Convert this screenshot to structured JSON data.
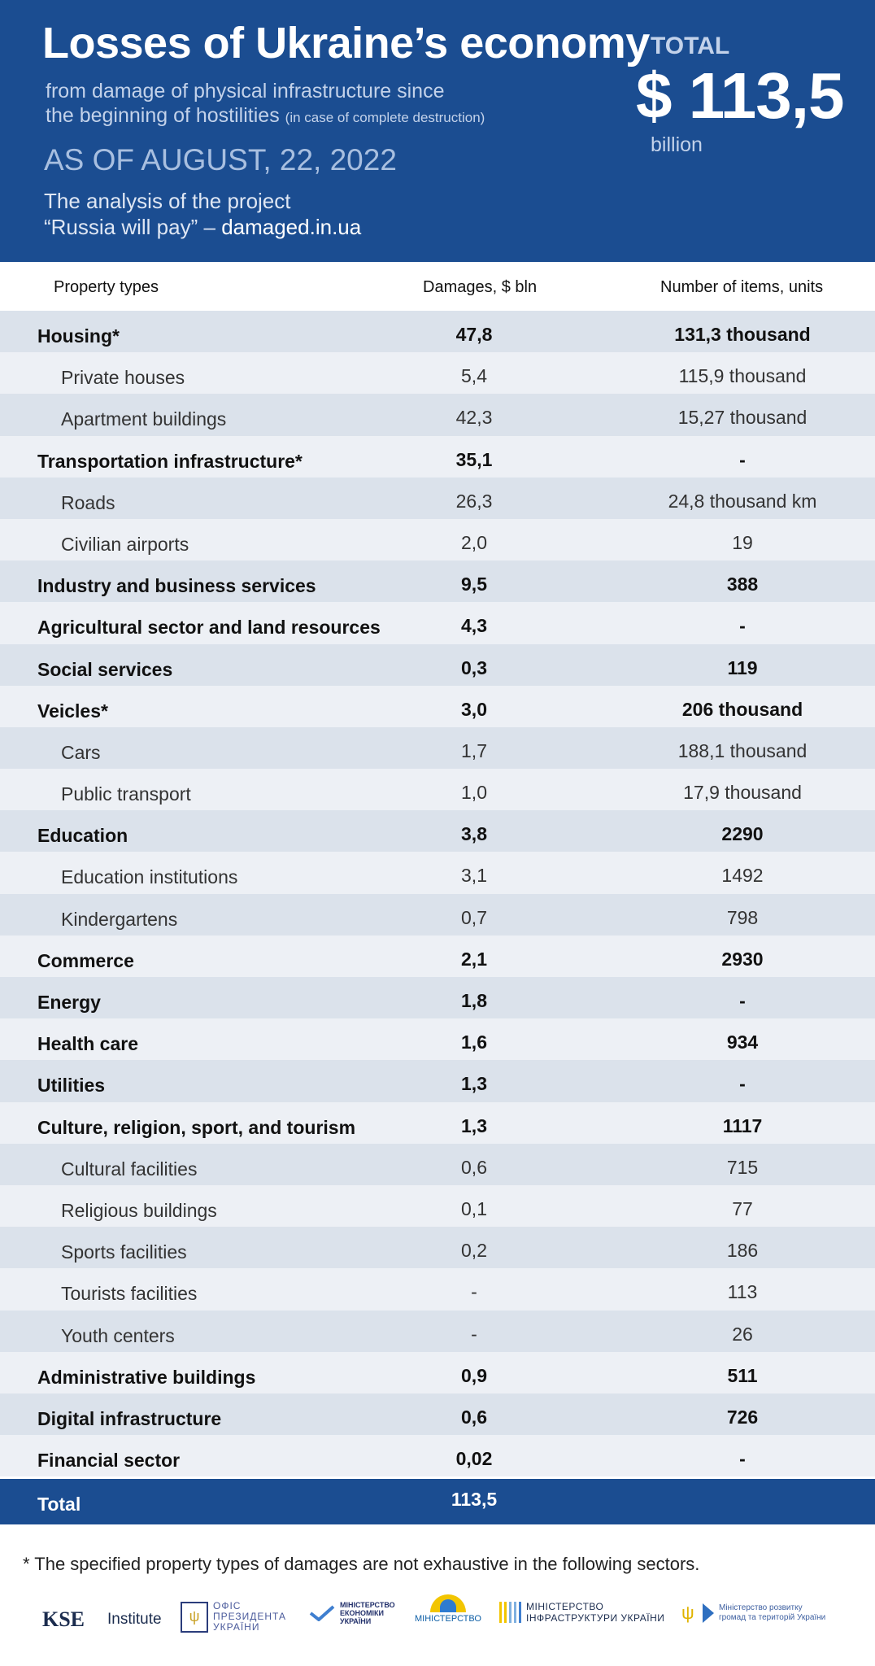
{
  "header": {
    "title": "Losses of Ukraine’s economy",
    "subtitle_line1": "from damage of physical infrastructure since",
    "subtitle_line2": "the beginning of hostilities",
    "subtitle_note": "(in case of complete destruction)",
    "date": "AS OF AUGUST, 22, 2022",
    "analysis_line1": "The analysis of the project",
    "analysis_line2": "“Russia will pay” –",
    "analysis_site": "damaged.in.ua",
    "total_label": "TOTAL",
    "total_value": "$ 113,5",
    "total_unit": "billion"
  },
  "columns": {
    "type": "Property types",
    "damages": "Damages, $ bln",
    "items": "Number of items, units"
  },
  "rows": [
    {
      "name": "Housing*",
      "damages": "47,8",
      "items": "131,3 thousand",
      "level": "main"
    },
    {
      "name": "Private houses",
      "damages": "5,4",
      "items": "115,9 thousand",
      "level": "sub"
    },
    {
      "name": "Apartment buildings",
      "damages": "42,3",
      "items": "15,27 thousand",
      "level": "sub"
    },
    {
      "name": "Transportation infrastructure*",
      "damages": "35,1",
      "items": "-",
      "level": "main"
    },
    {
      "name": "Roads",
      "damages": "26,3",
      "items": "24,8 thousand km",
      "level": "sub"
    },
    {
      "name": "Civilian airports",
      "damages": "2,0",
      "items": "19",
      "level": "sub"
    },
    {
      "name": "Industry and business services",
      "damages": "9,5",
      "items": "388",
      "level": "main"
    },
    {
      "name": "Agricultural sector and land resources",
      "damages": "4,3",
      "items": "-",
      "level": "main"
    },
    {
      "name": "Social services",
      "damages": "0,3",
      "items": "119",
      "level": "main"
    },
    {
      "name": "Veicles*",
      "damages": "3,0",
      "items": "206 thousand",
      "level": "main"
    },
    {
      "name": "Cars",
      "damages": "1,7",
      "items": "188,1  thousand",
      "level": "sub"
    },
    {
      "name": "Public transport",
      "damages": "1,0",
      "items": "17,9 thousand",
      "level": "sub"
    },
    {
      "name": "Education",
      "damages": "3,8",
      "items": "2290",
      "level": "main"
    },
    {
      "name": "Education institutions",
      "damages": "3,1",
      "items": "1492",
      "level": "sub"
    },
    {
      "name": "Kindergartens",
      "damages": "0,7",
      "items": "798",
      "level": "sub"
    },
    {
      "name": "Commerce",
      "damages": "2,1",
      "items": "2930",
      "level": "main"
    },
    {
      "name": "Energy",
      "damages": "1,8",
      "items": "-",
      "level": "main"
    },
    {
      "name": "Health care",
      "damages": "1,6",
      "items": "934",
      "level": "main"
    },
    {
      "name": "Utilities",
      "damages": "1,3",
      "items": "-",
      "level": "main"
    },
    {
      "name": "Culture, religion, sport, and tourism",
      "damages": "1,3",
      "items": "1117",
      "level": "main"
    },
    {
      "name": "Cultural facilities",
      "damages": "0,6",
      "items": "715",
      "level": "sub"
    },
    {
      "name": "Religious buildings",
      "damages": "0,1",
      "items": "77",
      "level": "sub"
    },
    {
      "name": "Sports facilities",
      "damages": "0,2",
      "items": "186",
      "level": "sub"
    },
    {
      "name": "Tourists facilities",
      "damages": "-",
      "items": "113",
      "level": "sub"
    },
    {
      "name": "Youth centers",
      "damages": "-",
      "items": "26",
      "level": "sub"
    },
    {
      "name": "Administrative buildings",
      "damages": "0,9",
      "items": "511",
      "level": "main"
    },
    {
      "name": "Digital infrastructure",
      "damages": "0,6",
      "items": "726",
      "level": "main"
    },
    {
      "name": "Financial sector",
      "damages": "0,02",
      "items": "-",
      "level": "main"
    }
  ],
  "total": {
    "name": "Total",
    "damages": "113,5"
  },
  "footnote": "* The specified property types of damages are not exhaustive in the following sectors.",
  "logos": {
    "kse_mark": "KSE",
    "kse_text": "Institute",
    "ofis_line1": "ОФІС",
    "ofis_line2": "ПРЕЗИДЕНТА",
    "ofis_line3": "УКРАЇНИ",
    "mine_line1": "МІНІСТЕРСТВО",
    "mine_line2": "ЕКОНОМІКИ",
    "mine_line3": "УКРАЇНИ",
    "minr_text": "МІНІСТЕРСТВО",
    "mini_line1": "МІНІСТЕРСТВО",
    "mini_line2": "ІНФРАСТРУКТУРИ УКРАЇНИ",
    "minh_line1": "Міністерство розвитку",
    "minh_line2": "громад та територій України"
  },
  "colors": {
    "brand_blue": "#1b4d91",
    "row_dark": "#dbe2eb",
    "row_light": "#edf0f5"
  }
}
